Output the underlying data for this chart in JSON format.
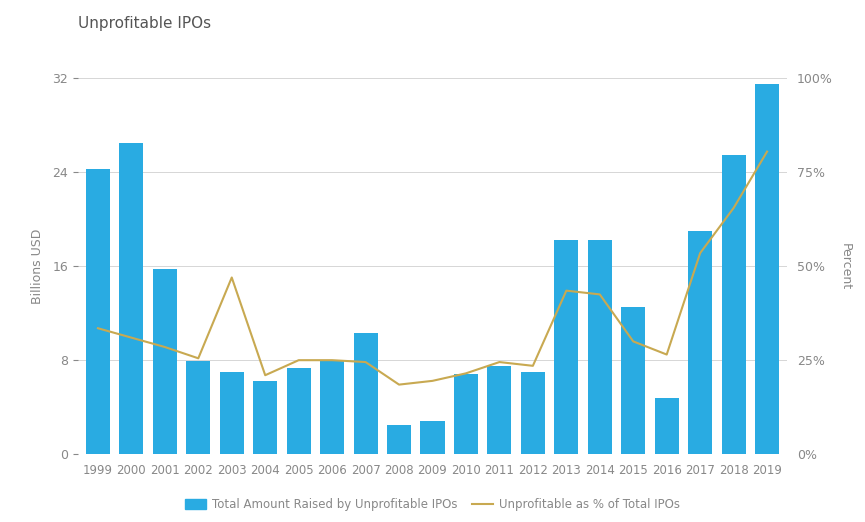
{
  "title": "Unprofitable IPOs",
  "years": [
    1999,
    2000,
    2001,
    2002,
    2003,
    2004,
    2005,
    2006,
    2007,
    2008,
    2009,
    2010,
    2011,
    2012,
    2013,
    2014,
    2015,
    2016,
    2017,
    2018,
    2019
  ],
  "bar_values": [
    24.3,
    26.5,
    15.8,
    7.9,
    7.0,
    6.2,
    7.3,
    7.9,
    10.3,
    2.5,
    2.8,
    6.8,
    7.5,
    7.0,
    18.2,
    18.2,
    12.5,
    4.8,
    19.0,
    25.5,
    31.5
  ],
  "line_values": [
    0.335,
    0.31,
    0.285,
    0.255,
    0.47,
    0.21,
    0.25,
    0.25,
    0.245,
    0.185,
    0.195,
    0.215,
    0.245,
    0.235,
    0.435,
    0.425,
    0.3,
    0.265,
    0.535,
    0.655,
    0.805
  ],
  "bar_color": "#29ABE2",
  "line_color": "#C8A951",
  "ylabel_left": "Billions USD",
  "ylabel_right": "Percent",
  "ylim_left": [
    0,
    32
  ],
  "ylim_right": [
    0,
    1.0
  ],
  "yticks_left": [
    0,
    8,
    16,
    24,
    32
  ],
  "yticks_right": [
    0.0,
    0.25,
    0.5,
    0.75,
    1.0
  ],
  "ytick_labels_right": [
    "0%",
    "25%",
    "50%",
    "75%",
    "100%"
  ],
  "ytick_labels_left": [
    "0",
    "8",
    "16",
    "24",
    "32"
  ],
  "legend_bar_label": "Total Amount Raised by Unprofitable IPOs",
  "legend_line_label": "Unprofitable as % of Total IPOs",
  "background_color": "#FFFFFF",
  "grid_color": "#D0D0D0",
  "title_color": "#555555",
  "axis_label_color": "#888888",
  "tick_label_color": "#888888"
}
